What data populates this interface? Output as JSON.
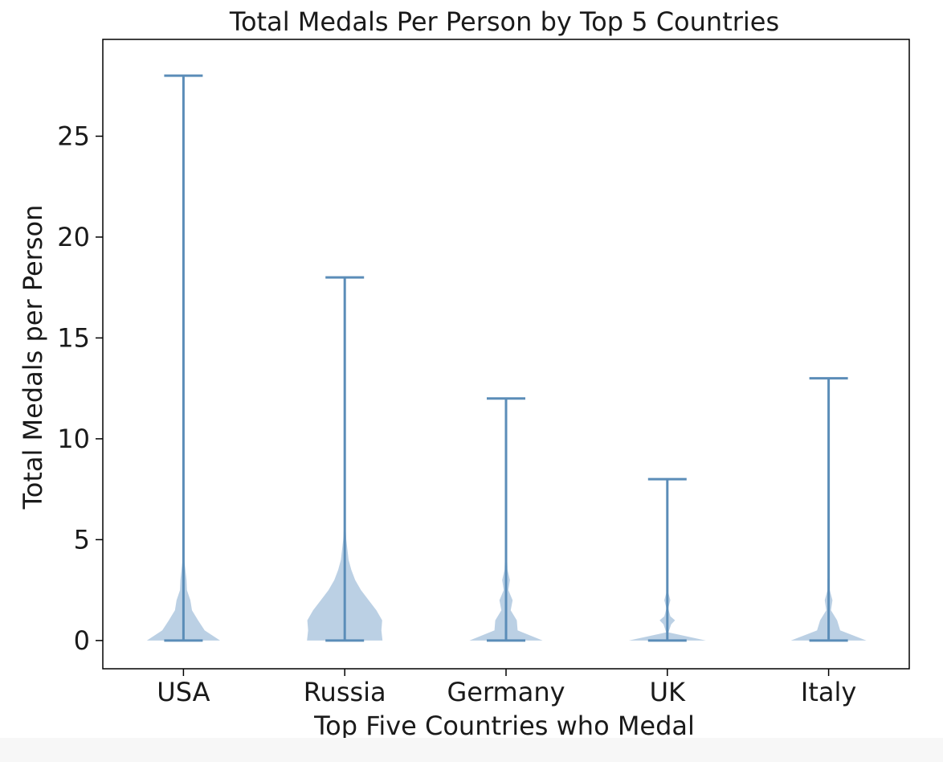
{
  "chart_data": {
    "type": "violin",
    "title": "Total Medals Per Person by Top 5 Countries",
    "xlabel": "Top Five Countries who Medal",
    "ylabel": "Total Medals per Person",
    "categories": [
      "USA",
      "Russia",
      "Germany",
      "UK",
      "Italy"
    ],
    "ylim": [
      -1.4,
      29.8
    ],
    "yticks": [
      0,
      5,
      10,
      15,
      20,
      25
    ],
    "grid": false,
    "color": "#5b8db8",
    "fill_color": "#b7cde3",
    "series": [
      {
        "category": "USA",
        "min": 0,
        "max": 28,
        "density": [
          [
            0,
            0.95
          ],
          [
            0.5,
            0.55
          ],
          [
            1,
            0.38
          ],
          [
            1.5,
            0.22
          ],
          [
            2,
            0.18
          ],
          [
            2.5,
            0.09
          ],
          [
            3,
            0.08
          ],
          [
            3.5,
            0.05
          ],
          [
            4,
            0.02
          ],
          [
            5,
            0.0
          ]
        ]
      },
      {
        "category": "Russia",
        "min": 0,
        "max": 18,
        "density": [
          [
            0,
            0.98
          ],
          [
            0.5,
            0.95
          ],
          [
            1,
            0.97
          ],
          [
            1.5,
            0.82
          ],
          [
            2,
            0.62
          ],
          [
            2.5,
            0.42
          ],
          [
            3,
            0.27
          ],
          [
            3.5,
            0.17
          ],
          [
            4,
            0.1
          ],
          [
            5,
            0.04
          ],
          [
            6,
            0.01
          ],
          [
            7,
            0.0
          ]
        ]
      },
      {
        "category": "Germany",
        "min": 0,
        "max": 12,
        "density": [
          [
            0,
            0.95
          ],
          [
            0.5,
            0.3
          ],
          [
            1,
            0.28
          ],
          [
            1.5,
            0.12
          ],
          [
            2,
            0.17
          ],
          [
            2.5,
            0.06
          ],
          [
            3,
            0.1
          ],
          [
            3.5,
            0.04
          ],
          [
            4,
            0.03
          ],
          [
            5,
            0.0
          ]
        ]
      },
      {
        "category": "UK",
        "min": 0,
        "max": 8,
        "density": [
          [
            0,
            1.0
          ],
          [
            0.4,
            0.03
          ],
          [
            0.8,
            0.1
          ],
          [
            1,
            0.2
          ],
          [
            1.2,
            0.08
          ],
          [
            1.6,
            0.02
          ],
          [
            2,
            0.08
          ],
          [
            2.4,
            0.02
          ],
          [
            3,
            0.02
          ],
          [
            3.5,
            0.0
          ]
        ]
      },
      {
        "category": "Italy",
        "min": 0,
        "max": 13,
        "density": [
          [
            0,
            0.98
          ],
          [
            0.5,
            0.3
          ],
          [
            1,
            0.22
          ],
          [
            1.5,
            0.06
          ],
          [
            2,
            0.1
          ],
          [
            2.5,
            0.03
          ],
          [
            3,
            0.03
          ],
          [
            3.5,
            0.0
          ]
        ]
      }
    ]
  }
}
